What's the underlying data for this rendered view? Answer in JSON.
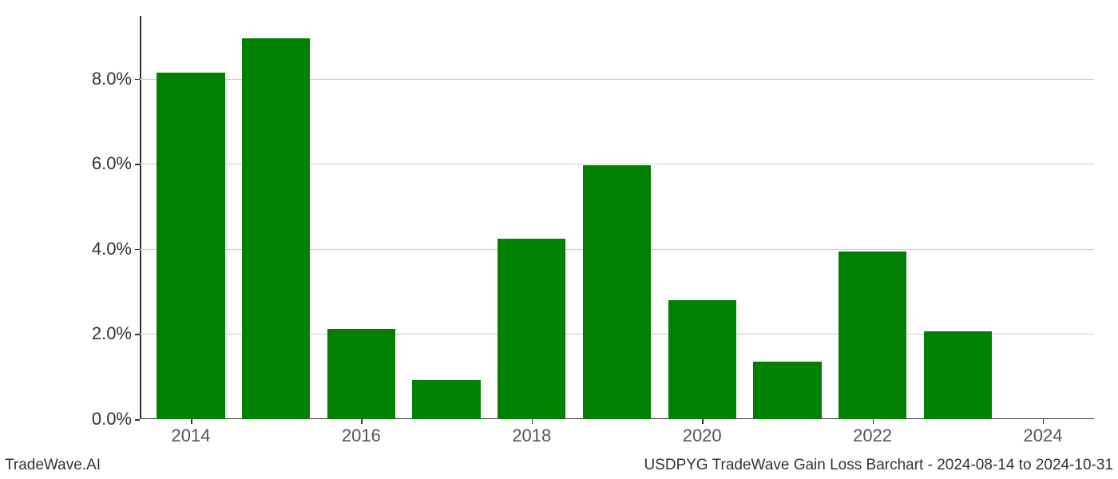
{
  "chart": {
    "type": "bar",
    "background_color": "#ffffff",
    "grid_color": "#cccccc",
    "axis_color": "#333333",
    "bar_color": "#008000",
    "years": [
      2014,
      2015,
      2016,
      2017,
      2018,
      2019,
      2020,
      2021,
      2022,
      2023,
      2024
    ],
    "values_pct": [
      8.15,
      8.95,
      2.12,
      0.92,
      4.25,
      5.98,
      2.8,
      1.35,
      3.95,
      2.06,
      0.0
    ],
    "y_min": 0.0,
    "y_max": 9.2,
    "y_ticks": [
      0.0,
      2.0,
      4.0,
      6.0,
      8.0
    ],
    "y_tick_labels": [
      "0.0%",
      "2.0%",
      "4.0%",
      "6.0%",
      "8.0%"
    ],
    "x_ticks": [
      2014,
      2016,
      2018,
      2020,
      2022,
      2024
    ],
    "x_tick_labels": [
      "2014",
      "2016",
      "2018",
      "2020",
      "2022",
      "2024"
    ],
    "x_min": 2013.4,
    "x_max": 2024.6,
    "bar_width": 0.8,
    "tick_label_fontsize": 22,
    "tick_label_color_y": "#333333",
    "tick_label_color_x": "#555555"
  },
  "footer": {
    "left": "TradeWave.AI",
    "right": "USDPYG TradeWave Gain Loss Barchart - 2024-08-14 to 2024-10-31",
    "fontsize": 19,
    "color": "#333333"
  }
}
